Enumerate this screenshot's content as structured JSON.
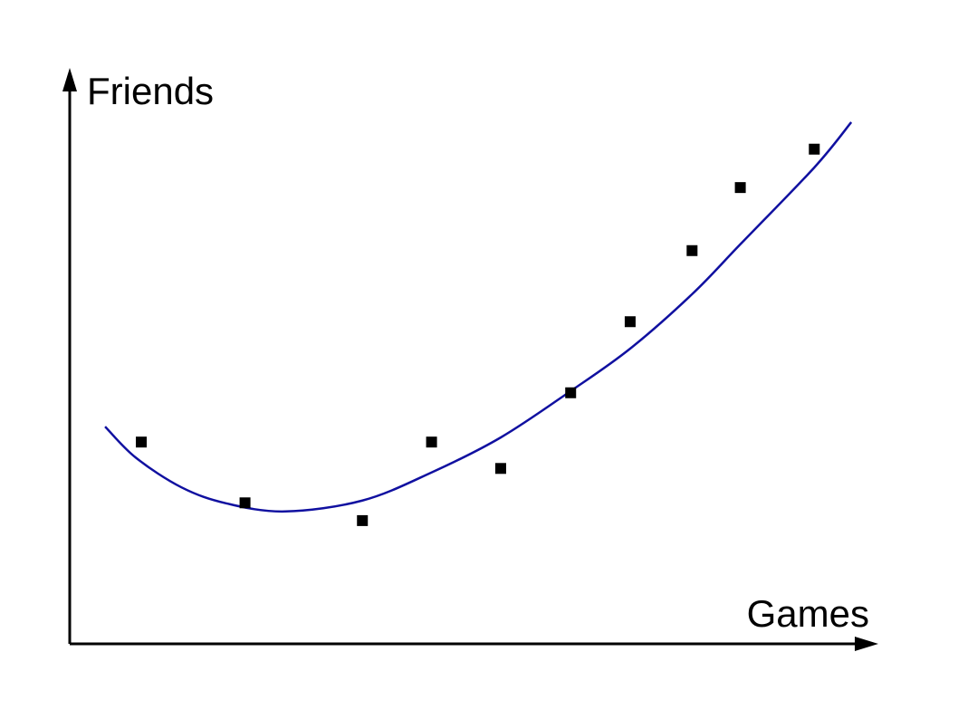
{
  "chart_data": {
    "type": "scatter",
    "title": "",
    "xlabel": "Games",
    "ylabel": "Friends",
    "xlim": [
      0,
      100
    ],
    "ylim": [
      0,
      100
    ],
    "grid": false,
    "ticks": false,
    "points": {
      "x": [
        8.9,
        21.8,
        36.4,
        45.0,
        53.6,
        62.3,
        69.7,
        77.4,
        83.4,
        92.6
      ],
      "y": [
        35.2,
        24.6,
        21.5,
        35.2,
        30.6,
        43.8,
        56.2,
        68.6,
        79.6,
        86.3
      ],
      "color": "#000000",
      "marker": "square"
    },
    "trend_line": {
      "x": [
        4.4,
        8.2,
        13.9,
        19.5,
        26.8,
        36.4,
        45.0,
        53.6,
        62.3,
        69.7,
        77.4,
        83.4,
        92.6,
        97.2
      ],
      "y": [
        37.9,
        32.5,
        27.3,
        24.5,
        23.1,
        25.0,
        29.9,
        36.0,
        44.1,
        51.5,
        61.0,
        69.7,
        83.1,
        91.0
      ],
      "color": "#1010a0"
    },
    "axis_color": "#000000"
  }
}
